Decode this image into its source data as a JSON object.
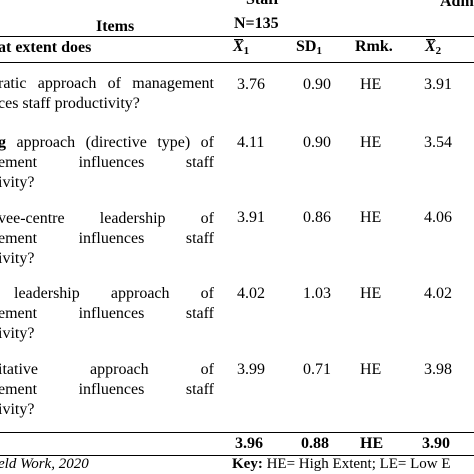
{
  "header": {
    "items_label": "Items",
    "items_sublabel": "at extent does",
    "staff_label": "Staff",
    "staff_n": "N=135",
    "admin_label": "Adm",
    "col_mean1_symbol": "X",
    "col_mean1_sub": "1",
    "col_sd1": "SD",
    "col_sd1_sub": "1",
    "col_rmk": "Rmk.",
    "col_mean2_symbol": "X",
    "col_mean2_sub": "2"
  },
  "rows": [
    {
      "lines": [
        "ratic approach of management",
        "ces staff productivity?"
      ],
      "mean1": "3.76",
      "sd1": "0.90",
      "rmk": "HE",
      "mean2": "3.91"
    },
    {
      "lines": [
        "g approach (directive type) of",
        "ement   influences   staff",
        "ivity?"
      ],
      "bold_prefix": "g",
      "mean1": "4.11",
      "sd1": "0.90",
      "rmk": "HE",
      "mean2": "3.54"
    },
    {
      "lines": [
        "vee-centre     leadership     of",
        "ement   influences   staff",
        "ivity?"
      ],
      "mean1": "3.91",
      "sd1": "0.86",
      "rmk": "HE",
      "mean2": "4.06"
    },
    {
      "lines": [
        "leadership     approach     of",
        "ement   influences   staff",
        "ivity?"
      ],
      "mean1": "4.02",
      "sd1": "1.03",
      "rmk": "HE",
      "mean2": "4.02"
    },
    {
      "lines": [
        "itative          approach          of",
        "ement   influences   staff",
        "ivity?"
      ],
      "mean1": "3.99",
      "sd1": "0.71",
      "rmk": "HE",
      "mean2": "3.98"
    }
  ],
  "totals": {
    "mean1": "3.96",
    "sd1": "0.88",
    "rmk": "HE",
    "mean2": "3.90"
  },
  "footer": {
    "source": "eld Work, 2020",
    "key_label": "Key:",
    "key_text": " HE= High Extent; LE= Low E"
  }
}
